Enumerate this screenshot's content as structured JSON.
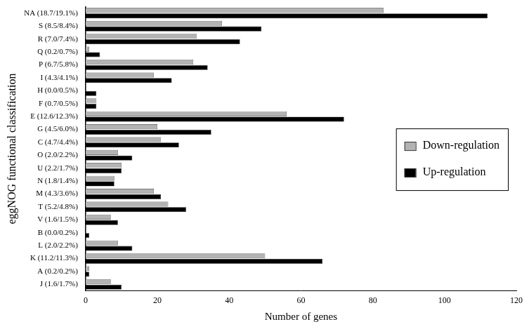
{
  "chart_data": {
    "type": "bar",
    "orientation": "horizontal",
    "x_label": "Number of genes",
    "y_label": "eggNOG functional classification",
    "categories": [
      "NA (18.7/19.1%)",
      "S (8.5/8.4%)",
      "R (7.0/7.4%)",
      "Q (0.2/0.7%)",
      "P (6.7/5.8%)",
      "I (4.3/4.1%)",
      "H (0.0/0.5%)",
      "F (0.7/0.5%)",
      "E (12.6/12.3%)",
      "G (4.5/6.0%)",
      "C (4.7/4.4%)",
      "O (2.0/2.2%)",
      "U (2.2/1.7%)",
      "N (1.8/1.4%)",
      "M (4.3/3.6%)",
      "T (5.2/4.8%)",
      "V (1.6/1.5%)",
      "B (0.0/0.2%)",
      "L (2.0/2.2%)",
      "K (11.2/11.3%)",
      "A (0.2/0.2%)",
      "J (1.6/1.7%)"
    ],
    "series": [
      {
        "name": "Down-regulation",
        "color": "#b3b3b3",
        "values": [
          83,
          38,
          31,
          1,
          30,
          19,
          0,
          3,
          56,
          20,
          21,
          9,
          10,
          8,
          19,
          23,
          7,
          0,
          9,
          50,
          1,
          7
        ]
      },
      {
        "name": "Up-regulation",
        "color": "#000000",
        "values": [
          112,
          49,
          43,
          4,
          34,
          24,
          3,
          3,
          72,
          35,
          26,
          13,
          10,
          8,
          21,
          28,
          9,
          1,
          13,
          66,
          1,
          10
        ]
      }
    ],
    "xlim": [
      0,
      120
    ],
    "xticks": [
      0,
      20,
      40,
      60,
      80,
      100,
      120
    ],
    "grid": false,
    "legend": "right"
  }
}
